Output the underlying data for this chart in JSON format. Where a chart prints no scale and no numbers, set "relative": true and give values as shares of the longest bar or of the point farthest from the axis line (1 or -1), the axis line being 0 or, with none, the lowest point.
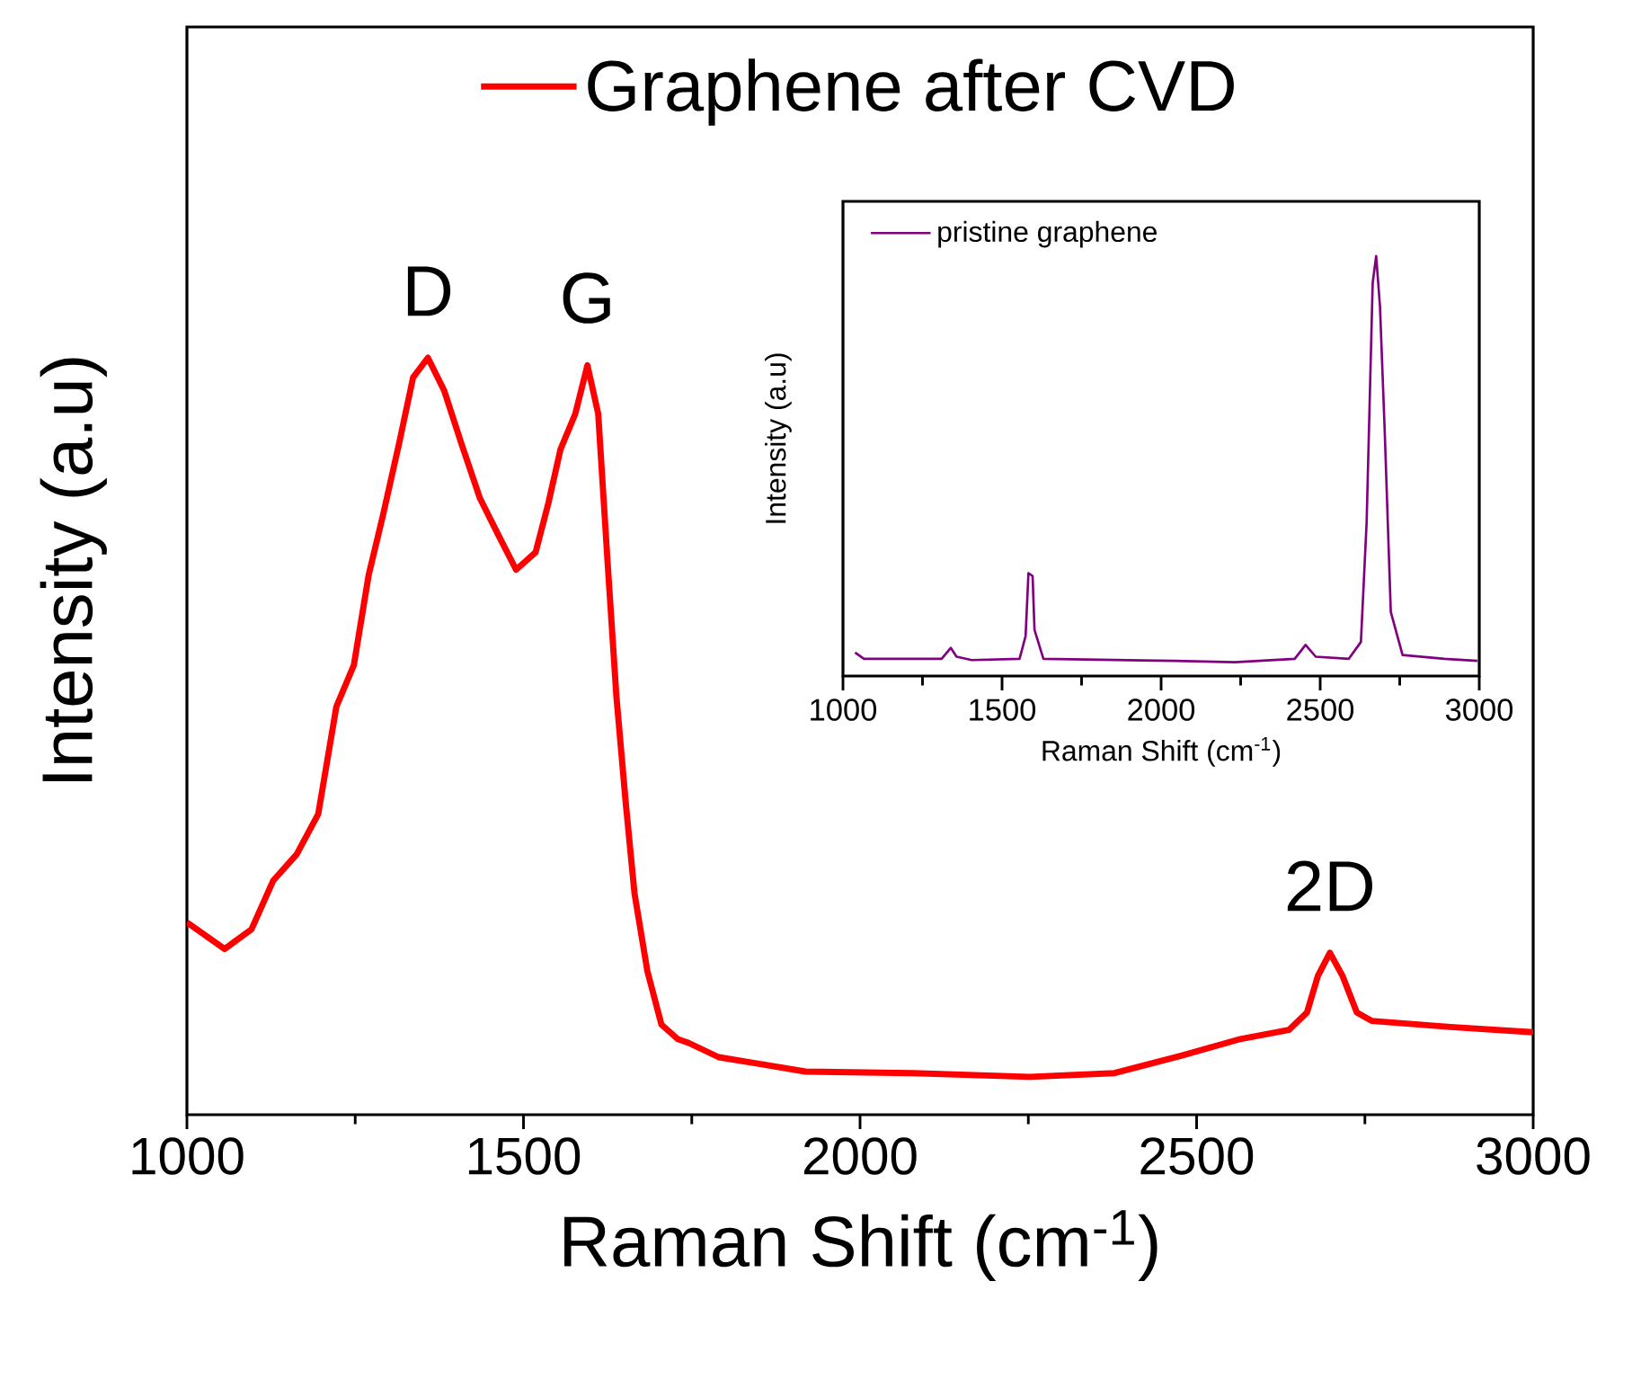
{
  "chart_data": [
    {
      "type": "line",
      "xlabel": "Raman Shift (cm$^{-1}$)",
      "ylabel": "Intensity (a.u)",
      "xlim": [
        1000,
        3000
      ],
      "xticks": [
        1000,
        1500,
        2000,
        2500,
        3000
      ],
      "relative": true,
      "tick_labels": "x",
      "legend": "top",
      "series": [
        {
          "name": "Graphene after CVD",
          "color": "#ff0000",
          "x": [
            1000,
            1056,
            1096,
            1128,
            1163,
            1195,
            1222,
            1248,
            1270,
            1291,
            1315,
            1336,
            1358,
            1382,
            1408,
            1435,
            1462,
            1489,
            1518,
            1537,
            1555,
            1577,
            1595,
            1611,
            1625,
            1638,
            1652,
            1665,
            1684,
            1705,
            1729,
            1745,
            1790,
            1852,
            1919,
            2076,
            2252,
            2378,
            2477,
            2565,
            2637,
            2664,
            2680,
            2698,
            2717,
            2738,
            2760,
            2877,
            3000
          ],
          "values": [
            0.254,
            0.219,
            0.245,
            0.309,
            0.344,
            0.397,
            0.539,
            0.594,
            0.713,
            0.791,
            0.886,
            0.974,
            1.0,
            0.957,
            0.886,
            0.815,
            0.767,
            0.72,
            0.743,
            0.808,
            0.879,
            0.926,
            0.99,
            0.926,
            0.729,
            0.553,
            0.411,
            0.292,
            0.19,
            0.119,
            0.1,
            0.095,
            0.076,
            0.067,
            0.057,
            0.055,
            0.05,
            0.055,
            0.078,
            0.1,
            0.112,
            0.135,
            0.183,
            0.214,
            0.183,
            0.135,
            0.124,
            0.116,
            0.109
          ]
        }
      ],
      "annotations": [
        {
          "text": "D",
          "x": 1358,
          "y": 1.0
        },
        {
          "text": "G",
          "x": 1595,
          "y": 0.99
        },
        {
          "text": "2D",
          "x": 2698,
          "y": 0.214
        }
      ]
    },
    {
      "type": "line",
      "xlabel": "Raman Shift (cm$^{-1}$)",
      "ylabel": "Intensity (a.u)",
      "xlim": [
        1000,
        3000
      ],
      "xticks": [
        1000,
        1500,
        2000,
        2500,
        3000
      ],
      "relative": true,
      "tick_labels": "x",
      "legend": "top left",
      "series": [
        {
          "name": "pristine graphene",
          "color": "#800080",
          "x": [
            1038,
            1066,
            1310,
            1339,
            1357,
            1405,
            1555,
            1574,
            1583,
            1596,
            1602,
            1630,
            2044,
            2232,
            2420,
            2454,
            2486,
            2590,
            2628,
            2646,
            2665,
            2676,
            2688,
            2703,
            2722,
            2759,
            2891,
            2994
          ],
          "values": [
            0.056,
            0.041,
            0.041,
            0.067,
            0.046,
            0.038,
            0.041,
            0.095,
            0.245,
            0.238,
            0.11,
            0.041,
            0.036,
            0.033,
            0.041,
            0.074,
            0.046,
            0.041,
            0.081,
            0.366,
            0.936,
            1.0,
            0.879,
            0.58,
            0.152,
            0.05,
            0.041,
            0.036
          ]
        }
      ]
    }
  ]
}
